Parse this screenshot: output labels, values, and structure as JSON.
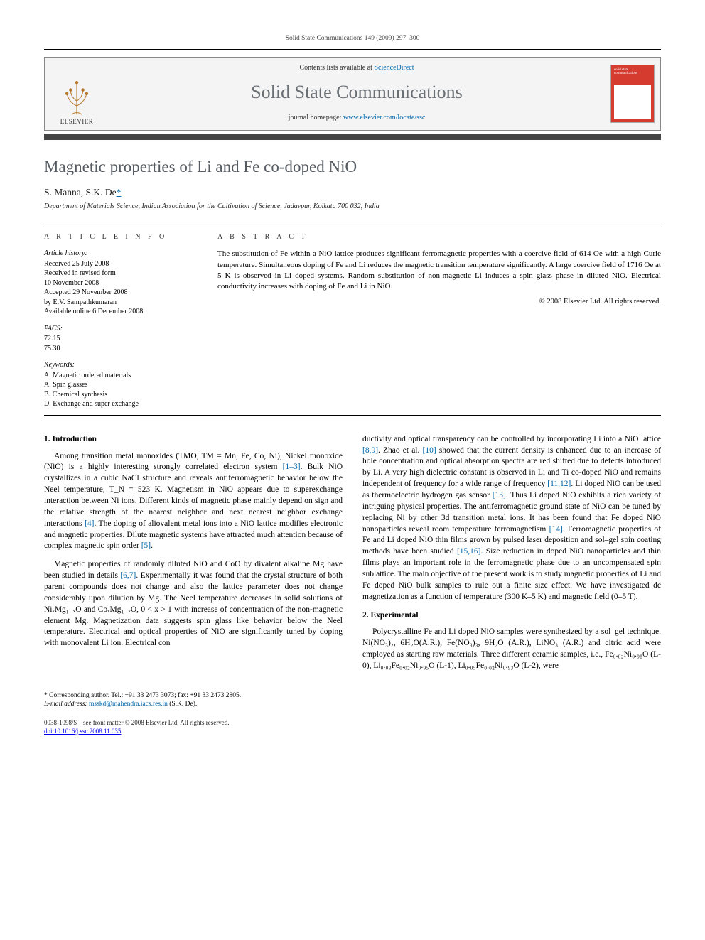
{
  "running_head": "Solid State Communications 149 (2009) 297–300",
  "masthead": {
    "contents_prefix": "Contents lists available at ",
    "contents_link": "ScienceDirect",
    "journal": "Solid State Communications",
    "homepage_prefix": "journal homepage: ",
    "homepage_link": "www.elsevier.com/locate/ssc",
    "publisher_word": "ELSEVIER",
    "cover_words": "solid state communications"
  },
  "title": "Magnetic properties of Li and Fe co-doped NiO",
  "authors_html": "S. Manna, S.K. De",
  "corr_mark": "*",
  "affiliation": "Department of Materials Science, Indian Association for the Cultivation of Science, Jadavpur, Kolkata 700 032, India",
  "meta": {
    "info_head": "A R T I C L E   I N F O",
    "abs_head": "A B S T R A C T",
    "history_head": "Article history:",
    "history": "Received 25 July 2008\nReceived in revised form\n10 November 2008\nAccepted 29 November 2008\nby E.V. Sampathkumaran\nAvailable online 6 December 2008",
    "pacs_head": "PACS:",
    "pacs": "72.15\n75.30",
    "keywords_head": "Keywords:",
    "keywords": "A. Magnetic ordered materials\nA. Spin glasses\nB. Chemical synthesis\nD. Exchange and super exchange"
  },
  "abstract": "The substitution of Fe within a NiO lattice produces significant ferromagnetic properties with a coercive field of 614 Oe with a high Curie temperature. Simultaneous doping of Fe and Li reduces the magnetic transition temperature significantly. A large coercive field of 1716 Oe at 5 K is observed in Li doped systems. Random substitution of non-magnetic Li induces a spin glass phase in diluted NiO. Electrical conductivity increases with doping of Fe and Li in NiO.",
  "copyright": "© 2008 Elsevier Ltd. All rights reserved.",
  "sections": {
    "intro_head": "1. Introduction",
    "intro_p1": "Among transition metal monoxides (TMO, TM = Mn, Fe, Co, Ni), Nickel monoxide (NiO) is a highly interesting strongly correlated electron system [1–3]. Bulk NiO crystallizes in a cubic NaCl structure and reveals antiferromagnetic behavior below the Neel temperature, T_N = 523 K. Magnetism in NiO appears due to superexchange interaction between Ni ions. Different kinds of magnetic phase mainly depend on sign and the relative strength of the nearest neighbor and next nearest neighbor exchange interactions [4]. The doping of aliovalent metal ions into a NiO lattice modifies electronic and magnetic properties. Dilute magnetic systems have attracted much attention because of complex magnetic spin order [5].",
    "intro_p2": "Magnetic properties of randomly diluted NiO and CoO by divalent alkaline Mg have been studied in details [6,7]. Experimentally it was found that the crystal structure of both parent compounds does not change and also the lattice parameter does not change considerably upon dilution by Mg. The Neel temperature decreases in solid solutions of NiₓMg₁₋ₓO and CoₓMg₁₋ₓO, 0 < x > 1 with increase of concentration of the non-magnetic element Mg. Magnetization data suggests spin glass like behavior below the Neel temperature. Electrical and optical properties of NiO are significantly tuned by doping with monovalent Li ion. Electrical con",
    "intro_p2b": "ductivity and optical transparency can be controlled by incorporating Li into a NiO lattice [8,9]. Zhao et al. [10] showed that the current density is enhanced due to an increase of hole concentration and optical absorption spectra are red shifted due to defects introduced by Li. A very high dielectric constant is observed in Li and Ti co-doped NiO and remains independent of frequency for a wide range of frequency [11,12]. Li doped NiO can be used as thermoelectric hydrogen gas sensor [13]. Thus Li doped NiO exhibits a rich variety of intriguing physical properties. The antiferromagnetic ground state of NiO can be tuned by replacing Ni by other 3d transition metal ions. It has been found that Fe doped NiO nanoparticles reveal room temperature ferromagnetism [14]. Ferromagnetic properties of Fe and Li doped NiO thin films grown by pulsed laser deposition and sol–gel spin coating methods have been studied [15,16]. Size reduction in doped NiO nanoparticles and thin films plays an important role in the ferromagnetic phase due to an uncompensated spin sublattice. The main objective of the present work is to study magnetic properties of Li and Fe doped NiO bulk samples to rule out a finite size effect. We have investigated dc magnetization as a function of temperature (300 K–5 K) and magnetic field (0–5 T).",
    "exp_head": "2. Experimental",
    "exp_p1": "Polycrystalline Fe and Li doped NiO samples were synthesized by a sol–gel technique. Ni(NO₃)₂, 6H₂O(A.R.), Fe(NO₃)₃, 9H₂O (A.R.), LiNO₃ (A.R.) and citric acid were employed as starting raw materials. Three different ceramic samples, i.e., Fe₀.₀₂Ni₀.₉₈O (L-0), Li₀.₀₃Fe₀.₀₂Ni₀.₉₅O (L-1), Li₀.₀₅Fe₀.₀₂Ni₀.₉₃O (L-2), were"
  },
  "footnote": {
    "corr_label": "* Corresponding author. Tel.: +91 33 2473 3073; fax: +91 33 2473 2805.",
    "email_label": "E-mail address:",
    "email": "msskd@mahendra.iacs.res.in",
    "email_who": "(S.K. De)."
  },
  "bottom": {
    "issn_line": "0038-1098/$ – see front matter © 2008 Elsevier Ltd. All rights reserved.",
    "doi_line": "doi:10.1016/j.ssc.2008.11.035"
  },
  "colors": {
    "accent_red": "#d63b2f",
    "link": "#0066aa",
    "journal_grey": "#6a6f74",
    "rule_dark": "#444444"
  }
}
